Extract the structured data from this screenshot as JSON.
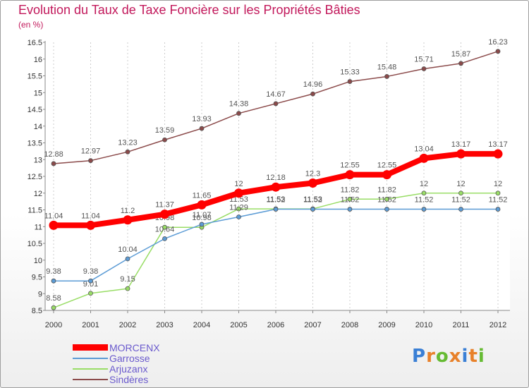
{
  "header": {
    "title": "Evolution du Taux de Taxe Foncière sur les Propriétés Bâties",
    "unit": "(en %)"
  },
  "logo": {
    "text": "Proxiti",
    "colors": [
      "#3a7fd5",
      "#e8812a",
      "#66bb33",
      "#e8812a",
      "#3a7fd5",
      "#e8812a",
      "#66bb33"
    ]
  },
  "chart_data": {
    "type": "line",
    "x": [
      "2000",
      "2001",
      "2002",
      "2003",
      "2004",
      "2005",
      "2006",
      "2007",
      "2008",
      "2009",
      "2010",
      "2011",
      "2012"
    ],
    "ylim": [
      8.5,
      16.5
    ],
    "yticks": [
      "8.5",
      "9",
      "9.5",
      "10",
      "10.5",
      "11",
      "11.5",
      "12",
      "12.5",
      "13",
      "13.5",
      "14",
      "14.5",
      "15",
      "15.5",
      "16",
      "16.5"
    ],
    "grid": "x-dashed",
    "legend_position": "bottom-left",
    "series": [
      {
        "name": "MORCENX",
        "color": "#ff0000",
        "values": [
          11.04,
          11.04,
          11.2,
          11.37,
          11.65,
          12,
          12.18,
          12.3,
          12.55,
          12.55,
          13.04,
          13.17,
          13.17
        ],
        "labels": [
          "11.04",
          "11.04",
          "11.2",
          "11.37",
          "11.65",
          "12",
          "12.18",
          "12.3",
          "12.55",
          "12.55",
          "13.04",
          "13.17",
          "13.17"
        ]
      },
      {
        "name": "Garrosse",
        "color": "#5b9bd5",
        "values": [
          9.38,
          9.38,
          10.04,
          10.64,
          11.07,
          11.29,
          11.52,
          11.52,
          11.52,
          11.52,
          11.52,
          11.52,
          11.52
        ],
        "labels": [
          "9.38",
          "9.38",
          "10.04",
          "10.64",
          "11.07",
          "11.29",
          "11.52",
          "11.52",
          "11.52",
          "11.52",
          "11.52",
          "11.52",
          "11.52"
        ]
      },
      {
        "name": "Arjuzanx",
        "color": "#99dd66",
        "values": [
          8.58,
          9.01,
          9.15,
          10.98,
          10.98,
          11.53,
          11.53,
          11.53,
          11.82,
          11.82,
          12,
          12,
          12
        ],
        "labels": [
          "8.58",
          "9.01",
          "9.15",
          "10.98",
          "10.98",
          "11.53",
          "11.53",
          "11.53",
          "11.82",
          "11.82",
          "12",
          "12",
          "12"
        ]
      },
      {
        "name": "Sindères",
        "color": "#8b4a4a",
        "values": [
          12.88,
          12.97,
          13.23,
          13.59,
          13.93,
          14.38,
          14.67,
          14.96,
          15.33,
          15.48,
          15.71,
          15.87,
          16.23
        ],
        "labels": [
          "12.88",
          "12.97",
          "13.23",
          "13.59",
          "13.93",
          "14.38",
          "14.67",
          "14.96",
          "15.33",
          "15.48",
          "15.71",
          "15.87",
          "16.23"
        ]
      }
    ]
  }
}
